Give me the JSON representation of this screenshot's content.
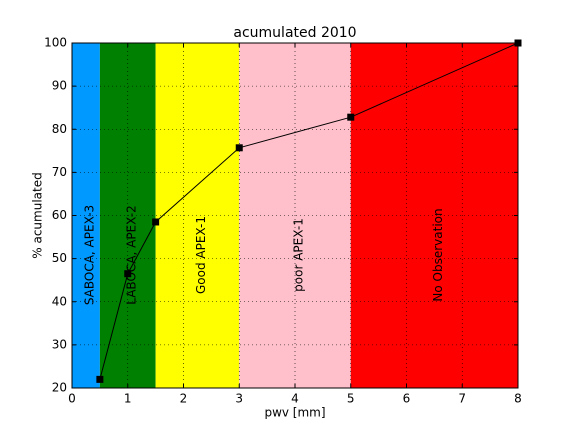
{
  "chart_data": {
    "type": "line",
    "title": "acumulated 2010",
    "x_label": "pwv [mm]",
    "y_label": "% acumulated",
    "x": [
      0.5,
      1,
      1.5,
      3,
      5,
      8
    ],
    "series": [
      {
        "color": "#000000",
        "values": [
          22,
          46.5,
          58.5,
          75.7,
          82.8,
          100
        ]
      }
    ],
    "bands": [
      {
        "label": "SABOCA, APEX-3",
        "color": "#0099ff",
        "start": 0,
        "end": 0.5
      },
      {
        "label": "LABOCA, APEX-2",
        "color": "#008000",
        "start": 0.5,
        "end": 1.5
      },
      {
        "label": "Good  APEX-1",
        "color": "#ffff00",
        "start": 1.5,
        "end": 3
      },
      {
        "label": "poor  APEX-1",
        "color": "#ffc0cb",
        "start": 3,
        "end": 5
      },
      {
        "label": "No Observation",
        "color": "#ff0000",
        "start": 5,
        "end": 8
      }
    ],
    "xlim": [
      0,
      8
    ],
    "ylim": [
      20,
      100
    ],
    "xticks": [
      0,
      1,
      2,
      3,
      4,
      5,
      6,
      7,
      8
    ],
    "yticks": [
      20,
      30,
      40,
      50,
      60,
      70,
      80,
      90,
      100
    ],
    "grid": true
  }
}
